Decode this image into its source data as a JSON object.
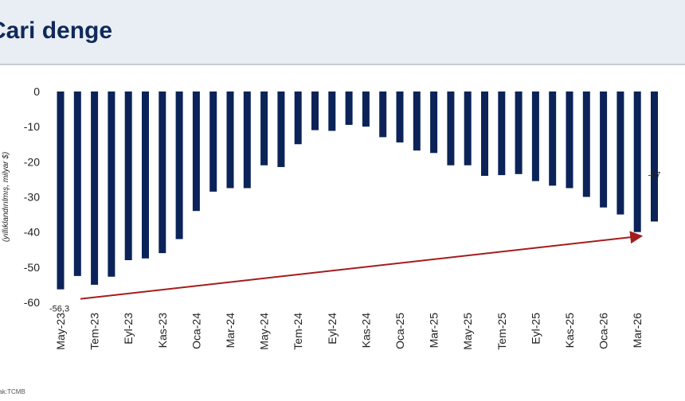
{
  "header": {
    "title": "Cari denge"
  },
  "footer": {
    "source": "nak:TCMB"
  },
  "colors": {
    "bar": "#0b2358",
    "arrow": "#a51c1c",
    "header_bg": "#e9edf4",
    "title": "#0f2a5a"
  },
  "chart_data": {
    "type": "bar",
    "title": "",
    "xlabel": "",
    "ylabel": "(yıllıklandırılmış, milyar $)",
    "ylim": [
      -60,
      0
    ],
    "yticks": [
      0,
      -10,
      -20,
      -30,
      -40,
      -50,
      -60
    ],
    "grid": false,
    "categories": [
      "May-23",
      "Haz-23",
      "Tem-23",
      "Ağu-23",
      "Eyl-23",
      "Eki-23",
      "Kas-23",
      "Ara-23",
      "Oca-24",
      "Şub-24",
      "Mar-24",
      "Nis-24",
      "May-24",
      "Haz-24",
      "Tem-24",
      "Ağu-24",
      "Eyl-24",
      "Eki-24",
      "Kas-24",
      "Ara-24",
      "Oca-25",
      "Şub-25",
      "Mar-25",
      "Nis-25",
      "May-25",
      "Haz-25",
      "Tem-25",
      "Ağu-25",
      "Eyl-25",
      "Eki-25",
      "Kas-25",
      "Ara-25",
      "Oca-26",
      "Şub-26",
      "Mar-26",
      "Nis-26"
    ],
    "visible_xtick_labels": [
      "May-23",
      "Tem-23",
      "Eyl-23",
      "Kas-23",
      "Oca-24",
      "Mar-24",
      "May-24",
      "Tem-24",
      "Eyl-24",
      "Kas-24",
      "Oca-25",
      "Mar-25",
      "May-25",
      "Tem-25",
      "Eyl-25",
      "Kas-25",
      "Oca-26",
      "Mar-26"
    ],
    "values": [
      -56.3,
      -52.5,
      -55,
      -52.7,
      -48,
      -47.5,
      -46,
      -42,
      -34,
      -28.5,
      -27.5,
      -27.5,
      -21,
      -21.5,
      -15,
      -11,
      -11.2,
      -9.5,
      -10,
      -13,
      -14.5,
      -16.8,
      -17.5,
      -21,
      -21,
      -24,
      -23.8,
      -23.5,
      -25.5,
      -26.8,
      -27.5,
      -30,
      -33,
      -35,
      -40,
      -37
    ],
    "data_labels": [
      {
        "category": "May-23",
        "text": "-56,3"
      },
      {
        "category": "Nis-26",
        "text": "-37"
      }
    ],
    "annotation": {
      "type": "arrow",
      "from_category": "May-23",
      "to_category": "Mar-26"
    }
  }
}
